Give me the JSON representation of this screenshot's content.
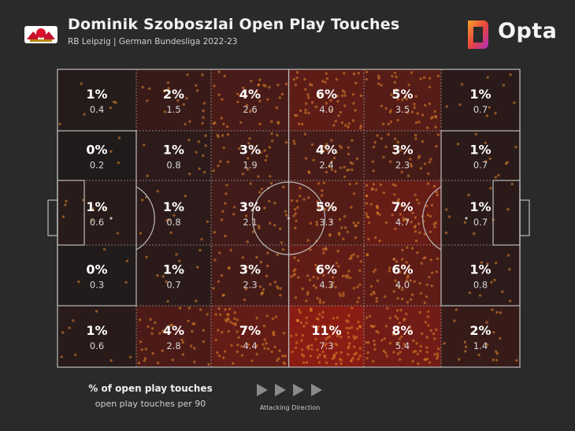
{
  "header": {
    "title": "Dominik Szoboszlai Open Play Touches",
    "subtitle": "RB Leipzig | German Bundesliga 2022-23",
    "brand": "Opta",
    "club_logo_icon": "rb-leipzig-crest-icon",
    "brand_logo_icon": "opta-logo-icon"
  },
  "colors": {
    "background": "#2a2a2a",
    "cell_base": "#1b1b1b",
    "heat_high": "#8a1c14",
    "dots": "#e0862a",
    "lines": "#9a9a9a"
  },
  "legend": {
    "percent_label": "% of open play touches",
    "per90_label": "open play touches per 90"
  },
  "direction": {
    "label": "Attacking Direction",
    "arrow_icon": "play-arrow-icon"
  },
  "chart_data": {
    "type": "heatmap",
    "title": "Dominik Szoboszlai Open Play Touches",
    "subtitle": "RB Leipzig | German Bundesliga 2022-23",
    "rows": 5,
    "cols": 6,
    "attacking_direction": "left-to-right",
    "cells": [
      [
        {
          "pct": "1%",
          "per90": "0.4"
        },
        {
          "pct": "2%",
          "per90": "1.5"
        },
        {
          "pct": "4%",
          "per90": "2.6"
        },
        {
          "pct": "6%",
          "per90": "4.0"
        },
        {
          "pct": "5%",
          "per90": "3.5"
        },
        {
          "pct": "1%",
          "per90": "0.7"
        }
      ],
      [
        {
          "pct": "0%",
          "per90": "0.2"
        },
        {
          "pct": "1%",
          "per90": "0.8"
        },
        {
          "pct": "3%",
          "per90": "1.9"
        },
        {
          "pct": "4%",
          "per90": "2.4"
        },
        {
          "pct": "3%",
          "per90": "2.3"
        },
        {
          "pct": "1%",
          "per90": "0.7"
        }
      ],
      [
        {
          "pct": "1%",
          "per90": "0.6"
        },
        {
          "pct": "1%",
          "per90": "0.8"
        },
        {
          "pct": "3%",
          "per90": "2.1"
        },
        {
          "pct": "5%",
          "per90": "3.3"
        },
        {
          "pct": "7%",
          "per90": "4.7"
        },
        {
          "pct": "1%",
          "per90": "0.7"
        }
      ],
      [
        {
          "pct": "0%",
          "per90": "0.3"
        },
        {
          "pct": "1%",
          "per90": "0.7"
        },
        {
          "pct": "3%",
          "per90": "2.3"
        },
        {
          "pct": "6%",
          "per90": "4.3"
        },
        {
          "pct": "6%",
          "per90": "4.0"
        },
        {
          "pct": "1%",
          "per90": "0.8"
        }
      ],
      [
        {
          "pct": "1%",
          "per90": "0.6"
        },
        {
          "pct": "4%",
          "per90": "2.8"
        },
        {
          "pct": "7%",
          "per90": "4.4"
        },
        {
          "pct": "11%",
          "per90": "7.3"
        },
        {
          "pct": "8%",
          "per90": "5.4"
        },
        {
          "pct": "2%",
          "per90": "1.4"
        }
      ]
    ]
  }
}
